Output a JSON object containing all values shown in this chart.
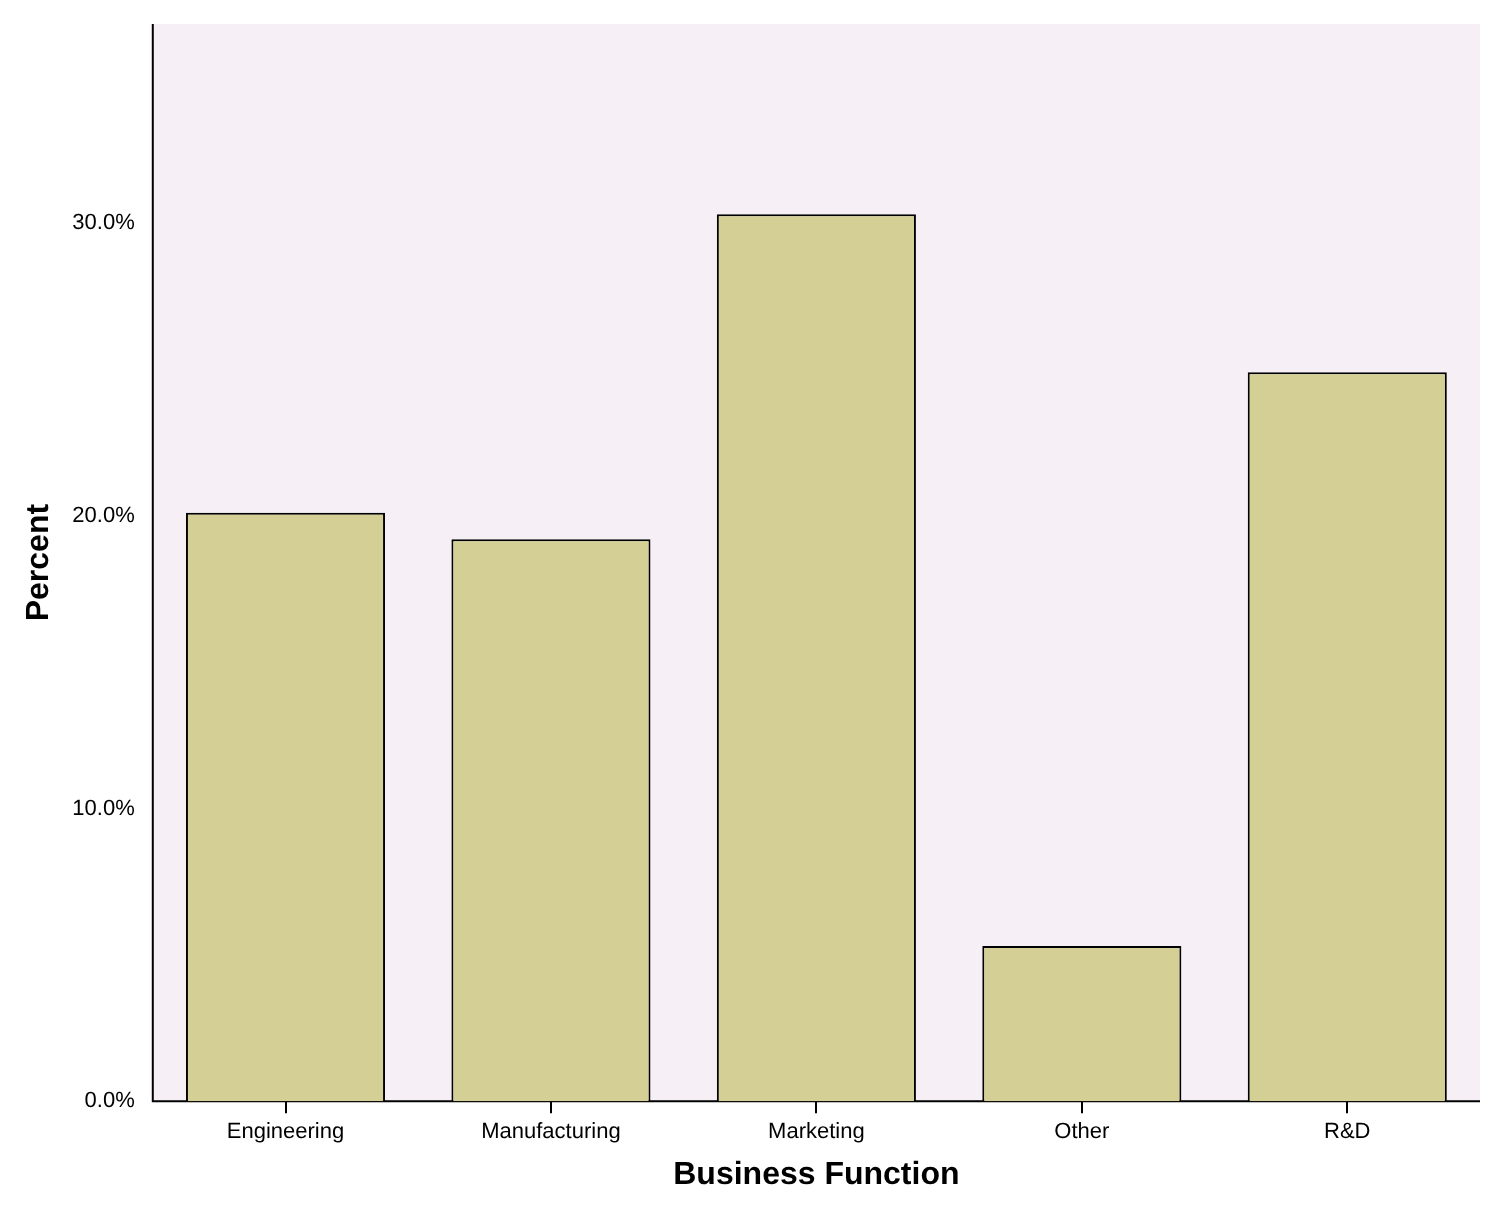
{
  "chart_data": {
    "type": "bar",
    "xlabel": "Business Function",
    "ylabel": "Percent",
    "categories": [
      "Engineering",
      "Manufacturing",
      "Marketing",
      "Other",
      "R&D"
    ],
    "values": [
      20.1,
      19.2,
      30.3,
      5.3,
      24.9
    ],
    "color": "#d4cf94",
    "ylim": [
      0,
      36.8
    ],
    "yticks": [
      {
        "value": 0,
        "label": "0.0%"
      },
      {
        "value": 10,
        "label": "10.0%"
      },
      {
        "value": 20,
        "label": "20.0%"
      },
      {
        "value": 30,
        "label": "30.0%"
      }
    ],
    "grid": false,
    "legend": false
  }
}
